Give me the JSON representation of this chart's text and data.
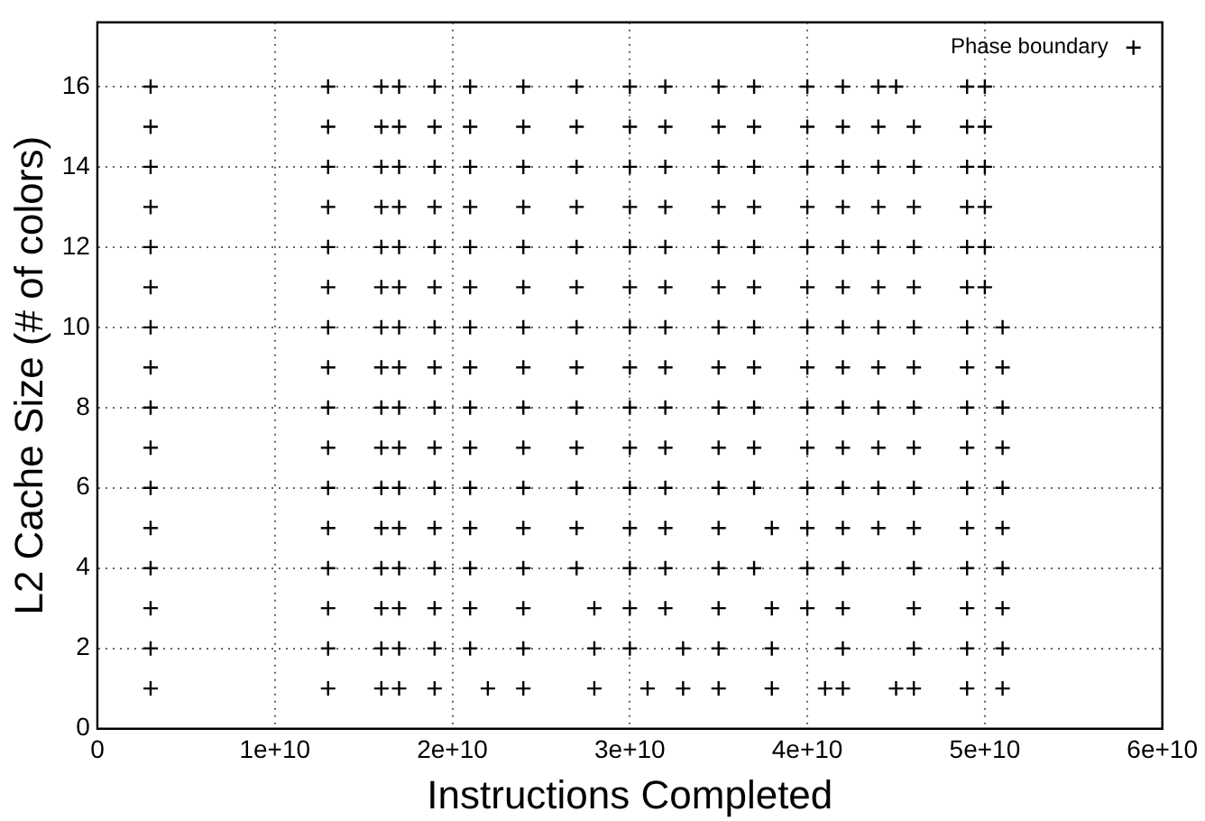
{
  "chart_data": {
    "type": "scatter",
    "xlabel": "Instructions Completed",
    "ylabel": "L2 Cache Size (# of colors)",
    "xlim": [
      0,
      60000000000.0
    ],
    "xticks": [
      0,
      {
        "value": 10000000000.0,
        "label": "1e+10"
      },
      {
        "value": 20000000000.0,
        "label": "2e+10"
      },
      {
        "value": 30000000000.0,
        "label": "3e+10"
      },
      {
        "value": 40000000000.0,
        "label": "4e+10"
      },
      {
        "value": 50000000000.0,
        "label": "5e+10"
      },
      {
        "value": 60000000000.0,
        "label": "6e+10"
      }
    ],
    "ylim": [
      0,
      17.6
    ],
    "yticks": [
      0,
      2,
      4,
      6,
      8,
      10,
      12,
      14,
      16
    ],
    "grid": true,
    "legend": "top right",
    "marker": "cross",
    "series": [
      {
        "name": "Phase boundary",
        "color": "#000000",
        "x": [
          3000000000.0,
          13000000000.0,
          16000000000.0,
          17000000000.0,
          19000000000.0,
          21000000000.0,
          24000000000.0,
          27000000000.0,
          30000000000.0,
          32000000000.0,
          35000000000.0,
          37000000000.0,
          40000000000.0,
          42000000000.0,
          44000000000.0,
          45000000000.0,
          49000000000.0,
          50000000000.0,
          3000000000.0,
          13000000000.0,
          16000000000.0,
          17000000000.0,
          19000000000.0,
          21000000000.0,
          24000000000.0,
          27000000000.0,
          30000000000.0,
          32000000000.0,
          35000000000.0,
          37000000000.0,
          40000000000.0,
          42000000000.0,
          44000000000.0,
          46000000000.0,
          49000000000.0,
          50000000000.0,
          3000000000.0,
          13000000000.0,
          16000000000.0,
          17000000000.0,
          19000000000.0,
          21000000000.0,
          24000000000.0,
          27000000000.0,
          30000000000.0,
          32000000000.0,
          35000000000.0,
          37000000000.0,
          40000000000.0,
          42000000000.0,
          44000000000.0,
          46000000000.0,
          49000000000.0,
          50000000000.0,
          3000000000.0,
          13000000000.0,
          16000000000.0,
          17000000000.0,
          19000000000.0,
          21000000000.0,
          24000000000.0,
          27000000000.0,
          30000000000.0,
          32000000000.0,
          35000000000.0,
          37000000000.0,
          40000000000.0,
          42000000000.0,
          44000000000.0,
          46000000000.0,
          49000000000.0,
          50000000000.0,
          3000000000.0,
          13000000000.0,
          16000000000.0,
          17000000000.0,
          19000000000.0,
          21000000000.0,
          24000000000.0,
          27000000000.0,
          30000000000.0,
          32000000000.0,
          35000000000.0,
          37000000000.0,
          40000000000.0,
          42000000000.0,
          44000000000.0,
          46000000000.0,
          49000000000.0,
          50000000000.0,
          3000000000.0,
          13000000000.0,
          16000000000.0,
          17000000000.0,
          19000000000.0,
          21000000000.0,
          24000000000.0,
          27000000000.0,
          30000000000.0,
          32000000000.0,
          35000000000.0,
          37000000000.0,
          40000000000.0,
          42000000000.0,
          44000000000.0,
          46000000000.0,
          49000000000.0,
          50000000000.0,
          3000000000.0,
          13000000000.0,
          16000000000.0,
          17000000000.0,
          19000000000.0,
          21000000000.0,
          24000000000.0,
          27000000000.0,
          30000000000.0,
          32000000000.0,
          35000000000.0,
          37000000000.0,
          40000000000.0,
          42000000000.0,
          44000000000.0,
          46000000000.0,
          49000000000.0,
          51000000000.0,
          3000000000.0,
          13000000000.0,
          16000000000.0,
          17000000000.0,
          19000000000.0,
          21000000000.0,
          24000000000.0,
          27000000000.0,
          30000000000.0,
          32000000000.0,
          35000000000.0,
          37000000000.0,
          40000000000.0,
          42000000000.0,
          44000000000.0,
          46000000000.0,
          49000000000.0,
          51000000000.0,
          3000000000.0,
          13000000000.0,
          16000000000.0,
          17000000000.0,
          19000000000.0,
          21000000000.0,
          24000000000.0,
          27000000000.0,
          30000000000.0,
          32000000000.0,
          35000000000.0,
          37000000000.0,
          40000000000.0,
          42000000000.0,
          44000000000.0,
          46000000000.0,
          49000000000.0,
          51000000000.0,
          3000000000.0,
          13000000000.0,
          16000000000.0,
          17000000000.0,
          19000000000.0,
          21000000000.0,
          24000000000.0,
          27000000000.0,
          30000000000.0,
          32000000000.0,
          35000000000.0,
          37000000000.0,
          40000000000.0,
          42000000000.0,
          44000000000.0,
          46000000000.0,
          49000000000.0,
          51000000000.0,
          3000000000.0,
          13000000000.0,
          16000000000.0,
          17000000000.0,
          19000000000.0,
          21000000000.0,
          24000000000.0,
          27000000000.0,
          30000000000.0,
          32000000000.0,
          35000000000.0,
          37000000000.0,
          40000000000.0,
          42000000000.0,
          44000000000.0,
          46000000000.0,
          49000000000.0,
          51000000000.0,
          3000000000.0,
          13000000000.0,
          16000000000.0,
          17000000000.0,
          19000000000.0,
          21000000000.0,
          24000000000.0,
          27000000000.0,
          30000000000.0,
          32000000000.0,
          35000000000.0,
          38000000000.0,
          40000000000.0,
          42000000000.0,
          44000000000.0,
          46000000000.0,
          49000000000.0,
          51000000000.0,
          3000000000.0,
          13000000000.0,
          16000000000.0,
          17000000000.0,
          19000000000.0,
          21000000000.0,
          24000000000.0,
          27000000000.0,
          30000000000.0,
          32000000000.0,
          35000000000.0,
          37000000000.0,
          40000000000.0,
          42000000000.0,
          46000000000.0,
          49000000000.0,
          51000000000.0,
          3000000000.0,
          13000000000.0,
          16000000000.0,
          17000000000.0,
          19000000000.0,
          21000000000.0,
          24000000000.0,
          28000000000.0,
          30000000000.0,
          32000000000.0,
          35000000000.0,
          38000000000.0,
          40000000000.0,
          42000000000.0,
          46000000000.0,
          49000000000.0,
          51000000000.0,
          3000000000.0,
          13000000000.0,
          16000000000.0,
          17000000000.0,
          19000000000.0,
          21000000000.0,
          24000000000.0,
          28000000000.0,
          30000000000.0,
          33000000000.0,
          35000000000.0,
          38000000000.0,
          42000000000.0,
          46000000000.0,
          49000000000.0,
          51000000000.0,
          3000000000.0,
          13000000000.0,
          16000000000.0,
          17000000000.0,
          19000000000.0,
          22000000000.0,
          24000000000.0,
          28000000000.0,
          31000000000.0,
          33000000000.0,
          35000000000.0,
          38000000000.0,
          41000000000.0,
          42000000000.0,
          45000000000.0,
          46000000000.0,
          49000000000.0,
          51000000000.0
        ],
        "values": [
          16,
          16,
          16,
          16,
          16,
          16,
          16,
          16,
          16,
          16,
          16,
          16,
          16,
          16,
          16,
          16,
          16,
          16,
          15,
          15,
          15,
          15,
          15,
          15,
          15,
          15,
          15,
          15,
          15,
          15,
          15,
          15,
          15,
          15,
          15,
          15,
          14,
          14,
          14,
          14,
          14,
          14,
          14,
          14,
          14,
          14,
          14,
          14,
          14,
          14,
          14,
          14,
          14,
          14,
          13,
          13,
          13,
          13,
          13,
          13,
          13,
          13,
          13,
          13,
          13,
          13,
          13,
          13,
          13,
          13,
          13,
          13,
          12,
          12,
          12,
          12,
          12,
          12,
          12,
          12,
          12,
          12,
          12,
          12,
          12,
          12,
          12,
          12,
          12,
          12,
          11,
          11,
          11,
          11,
          11,
          11,
          11,
          11,
          11,
          11,
          11,
          11,
          11,
          11,
          11,
          11,
          11,
          11,
          10,
          10,
          10,
          10,
          10,
          10,
          10,
          10,
          10,
          10,
          10,
          10,
          10,
          10,
          10,
          10,
          10,
          10,
          9,
          9,
          9,
          9,
          9,
          9,
          9,
          9,
          9,
          9,
          9,
          9,
          9,
          9,
          9,
          9,
          9,
          9,
          8,
          8,
          8,
          8,
          8,
          8,
          8,
          8,
          8,
          8,
          8,
          8,
          8,
          8,
          8,
          8,
          8,
          8,
          7,
          7,
          7,
          7,
          7,
          7,
          7,
          7,
          7,
          7,
          7,
          7,
          7,
          7,
          7,
          7,
          7,
          7,
          6,
          6,
          6,
          6,
          6,
          6,
          6,
          6,
          6,
          6,
          6,
          6,
          6,
          6,
          6,
          6,
          6,
          6,
          5,
          5,
          5,
          5,
          5,
          5,
          5,
          5,
          5,
          5,
          5,
          5,
          5,
          5,
          5,
          5,
          5,
          5,
          4,
          4,
          4,
          4,
          4,
          4,
          4,
          4,
          4,
          4,
          4,
          4,
          4,
          4,
          4,
          4,
          4,
          3,
          3,
          3,
          3,
          3,
          3,
          3,
          3,
          3,
          3,
          3,
          3,
          3,
          3,
          3,
          3,
          3,
          2,
          2,
          2,
          2,
          2,
          2,
          2,
          2,
          2,
          2,
          2,
          2,
          2,
          2,
          2,
          2,
          1,
          1,
          1,
          1,
          1,
          1,
          1,
          1,
          1,
          1,
          1,
          1,
          1,
          1,
          1,
          1,
          1,
          1
        ]
      }
    ]
  }
}
